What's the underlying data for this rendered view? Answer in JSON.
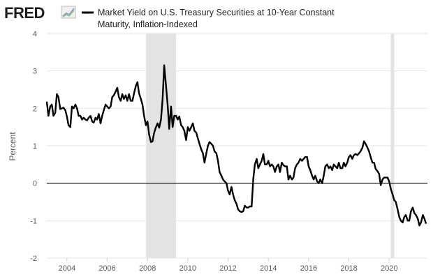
{
  "logo": {
    "text": "FRED",
    "icon": "trend-line-icon",
    "color": "#1f1f1f"
  },
  "chart_data": {
    "type": "line",
    "title_lines": [
      "Market Yield on U.S. Treasury Securities at 10-Year Constant",
      "Maturity, Inflation-Indexed"
    ],
    "xlabel": "",
    "ylabel": "Percent",
    "xlim": [
      2003.0,
      2021.9
    ],
    "ylim": [
      -2,
      4
    ],
    "y_ticks": [
      -2,
      -1,
      0,
      1,
      2,
      3,
      4
    ],
    "x_ticks": [
      2004,
      2006,
      2008,
      2010,
      2012,
      2014,
      2016,
      2018,
      2020
    ],
    "grid": {
      "horizontal": true,
      "vertical": false
    },
    "legend": "top",
    "colors": {
      "line": "#000000",
      "recession": "#e3e3e3",
      "grid": "#e5e5e5",
      "zero_line": "#000000"
    },
    "recessions": [
      [
        2007.92,
        2009.42
      ],
      [
        2020.08,
        2020.25
      ]
    ],
    "series": [
      {
        "name": "Market Yield on U.S. Treasury Securities at 10-Year Constant Maturity, Inflation-Indexed",
        "points": [
          [
            2003.0,
            2.18
          ],
          [
            2003.08,
            1.8
          ],
          [
            2003.17,
            2.05
          ],
          [
            2003.25,
            2.1
          ],
          [
            2003.33,
            1.8
          ],
          [
            2003.42,
            1.88
          ],
          [
            2003.5,
            2.38
          ],
          [
            2003.58,
            2.3
          ],
          [
            2003.67,
            1.98
          ],
          [
            2003.75,
            2.0
          ],
          [
            2003.83,
            2.02
          ],
          [
            2003.92,
            1.95
          ],
          [
            2004.0,
            1.78
          ],
          [
            2004.08,
            1.55
          ],
          [
            2004.17,
            1.5
          ],
          [
            2004.25,
            2.05
          ],
          [
            2004.33,
            2.0
          ],
          [
            2004.42,
            2.1
          ],
          [
            2004.5,
            2.0
          ],
          [
            2004.58,
            1.8
          ],
          [
            2004.67,
            1.8
          ],
          [
            2004.75,
            1.7
          ],
          [
            2004.83,
            1.75
          ],
          [
            2004.92,
            1.7
          ],
          [
            2005.0,
            1.68
          ],
          [
            2005.08,
            1.75
          ],
          [
            2005.17,
            1.8
          ],
          [
            2005.25,
            1.65
          ],
          [
            2005.33,
            1.62
          ],
          [
            2005.42,
            1.75
          ],
          [
            2005.5,
            1.7
          ],
          [
            2005.58,
            1.85
          ],
          [
            2005.67,
            1.6
          ],
          [
            2005.75,
            1.8
          ],
          [
            2005.83,
            1.95
          ],
          [
            2005.92,
            2.1
          ],
          [
            2006.0,
            2.05
          ],
          [
            2006.08,
            2.0
          ],
          [
            2006.17,
            2.05
          ],
          [
            2006.25,
            2.3
          ],
          [
            2006.33,
            2.35
          ],
          [
            2006.42,
            2.45
          ],
          [
            2006.5,
            2.55
          ],
          [
            2006.58,
            2.3
          ],
          [
            2006.67,
            2.2
          ],
          [
            2006.75,
            2.38
          ],
          [
            2006.83,
            2.25
          ],
          [
            2006.92,
            2.35
          ],
          [
            2007.0,
            2.2
          ],
          [
            2007.08,
            2.38
          ],
          [
            2007.17,
            2.2
          ],
          [
            2007.25,
            2.2
          ],
          [
            2007.33,
            2.4
          ],
          [
            2007.42,
            2.6
          ],
          [
            2007.5,
            2.7
          ],
          [
            2007.58,
            2.4
          ],
          [
            2007.67,
            2.25
          ],
          [
            2007.75,
            2.1
          ],
          [
            2007.83,
            1.8
          ],
          [
            2007.92,
            1.55
          ],
          [
            2008.0,
            1.65
          ],
          [
            2008.08,
            1.3
          ],
          [
            2008.17,
            1.1
          ],
          [
            2008.25,
            1.12
          ],
          [
            2008.33,
            1.35
          ],
          [
            2008.42,
            1.5
          ],
          [
            2008.5,
            1.6
          ],
          [
            2008.58,
            1.48
          ],
          [
            2008.67,
            1.7
          ],
          [
            2008.75,
            2.25
          ],
          [
            2008.83,
            3.15
          ],
          [
            2008.92,
            2.6
          ],
          [
            2009.0,
            2.1
          ],
          [
            2009.08,
            1.45
          ],
          [
            2009.17,
            2.05
          ],
          [
            2009.25,
            1.5
          ],
          [
            2009.33,
            1.8
          ],
          [
            2009.42,
            1.8
          ],
          [
            2009.5,
            1.7
          ],
          [
            2009.58,
            1.78
          ],
          [
            2009.67,
            1.55
          ],
          [
            2009.75,
            1.5
          ],
          [
            2009.83,
            1.4
          ],
          [
            2009.92,
            1.15
          ],
          [
            2010.0,
            1.5
          ],
          [
            2010.08,
            1.4
          ],
          [
            2010.17,
            1.5
          ],
          [
            2010.25,
            1.6
          ],
          [
            2010.33,
            1.4
          ],
          [
            2010.42,
            1.35
          ],
          [
            2010.5,
            1.2
          ],
          [
            2010.58,
            1.05
          ],
          [
            2010.67,
            0.9
          ],
          [
            2010.75,
            0.8
          ],
          [
            2010.83,
            0.55
          ],
          [
            2010.92,
            0.8
          ],
          [
            2011.0,
            1.0
          ],
          [
            2011.08,
            1.1
          ],
          [
            2011.17,
            1.05
          ],
          [
            2011.25,
            1.0
          ],
          [
            2011.33,
            0.85
          ],
          [
            2011.42,
            0.8
          ],
          [
            2011.5,
            0.6
          ],
          [
            2011.58,
            0.3
          ],
          [
            2011.67,
            0.2
          ],
          [
            2011.75,
            0.1
          ],
          [
            2011.83,
            0.05
          ],
          [
            2011.92,
            0.0
          ],
          [
            2012.0,
            -0.2
          ],
          [
            2012.08,
            -0.3
          ],
          [
            2012.17,
            -0.1
          ],
          [
            2012.25,
            -0.3
          ],
          [
            2012.33,
            -0.45
          ],
          [
            2012.42,
            -0.55
          ],
          [
            2012.5,
            -0.7
          ],
          [
            2012.58,
            -0.75
          ],
          [
            2012.67,
            -0.77
          ],
          [
            2012.75,
            -0.75
          ],
          [
            2012.83,
            -0.6
          ],
          [
            2012.92,
            -0.65
          ],
          [
            2013.0,
            -0.65
          ],
          [
            2013.08,
            -0.62
          ],
          [
            2013.17,
            -0.62
          ],
          [
            2013.25,
            0.1
          ],
          [
            2013.33,
            0.5
          ],
          [
            2013.42,
            0.65
          ],
          [
            2013.5,
            0.4
          ],
          [
            2013.58,
            0.5
          ],
          [
            2013.67,
            0.6
          ],
          [
            2013.75,
            0.78
          ],
          [
            2013.83,
            0.5
          ],
          [
            2013.92,
            0.5
          ],
          [
            2014.0,
            0.6
          ],
          [
            2014.08,
            0.45
          ],
          [
            2014.17,
            0.5
          ],
          [
            2014.25,
            0.45
          ],
          [
            2014.33,
            0.3
          ],
          [
            2014.42,
            0.45
          ],
          [
            2014.5,
            0.5
          ],
          [
            2014.58,
            0.3
          ],
          [
            2014.67,
            0.55
          ],
          [
            2014.75,
            0.48
          ],
          [
            2014.83,
            0.45
          ],
          [
            2014.92,
            0.45
          ],
          [
            2015.0,
            0.1
          ],
          [
            2015.08,
            0.2
          ],
          [
            2015.17,
            0.1
          ],
          [
            2015.25,
            0.15
          ],
          [
            2015.33,
            0.4
          ],
          [
            2015.42,
            0.5
          ],
          [
            2015.5,
            0.55
          ],
          [
            2015.58,
            0.65
          ],
          [
            2015.67,
            0.6
          ],
          [
            2015.75,
            0.65
          ],
          [
            2015.83,
            0.7
          ],
          [
            2015.92,
            0.7
          ],
          [
            2016.0,
            0.45
          ],
          [
            2016.08,
            0.35
          ],
          [
            2016.17,
            0.2
          ],
          [
            2016.25,
            0.1
          ],
          [
            2016.33,
            0.2
          ],
          [
            2016.42,
            0.05
          ],
          [
            2016.5,
            0.0
          ],
          [
            2016.58,
            0.1
          ],
          [
            2016.67,
            0.0
          ],
          [
            2016.75,
            0.2
          ],
          [
            2016.83,
            0.45
          ],
          [
            2016.92,
            0.5
          ],
          [
            2017.0,
            0.4
          ],
          [
            2017.08,
            0.45
          ],
          [
            2017.17,
            0.35
          ],
          [
            2017.25,
            0.5
          ],
          [
            2017.33,
            0.45
          ],
          [
            2017.42,
            0.4
          ],
          [
            2017.5,
            0.55
          ],
          [
            2017.58,
            0.4
          ],
          [
            2017.67,
            0.4
          ],
          [
            2017.75,
            0.55
          ],
          [
            2017.83,
            0.45
          ],
          [
            2017.92,
            0.55
          ],
          [
            2018.0,
            0.7
          ],
          [
            2018.08,
            0.75
          ],
          [
            2018.17,
            0.65
          ],
          [
            2018.25,
            0.75
          ],
          [
            2018.33,
            0.78
          ],
          [
            2018.42,
            0.75
          ],
          [
            2018.5,
            0.8
          ],
          [
            2018.58,
            0.85
          ],
          [
            2018.67,
            0.95
          ],
          [
            2018.75,
            1.12
          ],
          [
            2018.83,
            1.05
          ],
          [
            2018.92,
            0.95
          ],
          [
            2019.0,
            0.85
          ],
          [
            2019.08,
            0.7
          ],
          [
            2019.17,
            0.55
          ],
          [
            2019.25,
            0.55
          ],
          [
            2019.33,
            0.38
          ],
          [
            2019.42,
            0.32
          ],
          [
            2019.5,
            0.25
          ],
          [
            2019.58,
            -0.05
          ],
          [
            2019.67,
            0.1
          ],
          [
            2019.75,
            0.15
          ],
          [
            2019.83,
            0.15
          ],
          [
            2019.92,
            0.15
          ],
          [
            2020.0,
            0.05
          ],
          [
            2020.08,
            -0.15
          ],
          [
            2020.17,
            -0.3
          ],
          [
            2020.25,
            -0.45
          ],
          [
            2020.33,
            -0.5
          ],
          [
            2020.42,
            -0.7
          ],
          [
            2020.5,
            -0.9
          ],
          [
            2020.58,
            -1.0
          ],
          [
            2020.67,
            -1.05
          ],
          [
            2020.75,
            -0.9
          ],
          [
            2020.83,
            -0.85
          ],
          [
            2020.92,
            -1.0
          ],
          [
            2021.0,
            -1.0
          ],
          [
            2021.08,
            -0.75
          ],
          [
            2021.17,
            -0.65
          ],
          [
            2021.25,
            -0.8
          ],
          [
            2021.33,
            -0.85
          ],
          [
            2021.42,
            -0.95
          ],
          [
            2021.5,
            -1.13
          ],
          [
            2021.58,
            -1.05
          ],
          [
            2021.67,
            -0.85
          ],
          [
            2021.75,
            -0.95
          ],
          [
            2021.83,
            -1.08
          ]
        ]
      }
    ]
  }
}
